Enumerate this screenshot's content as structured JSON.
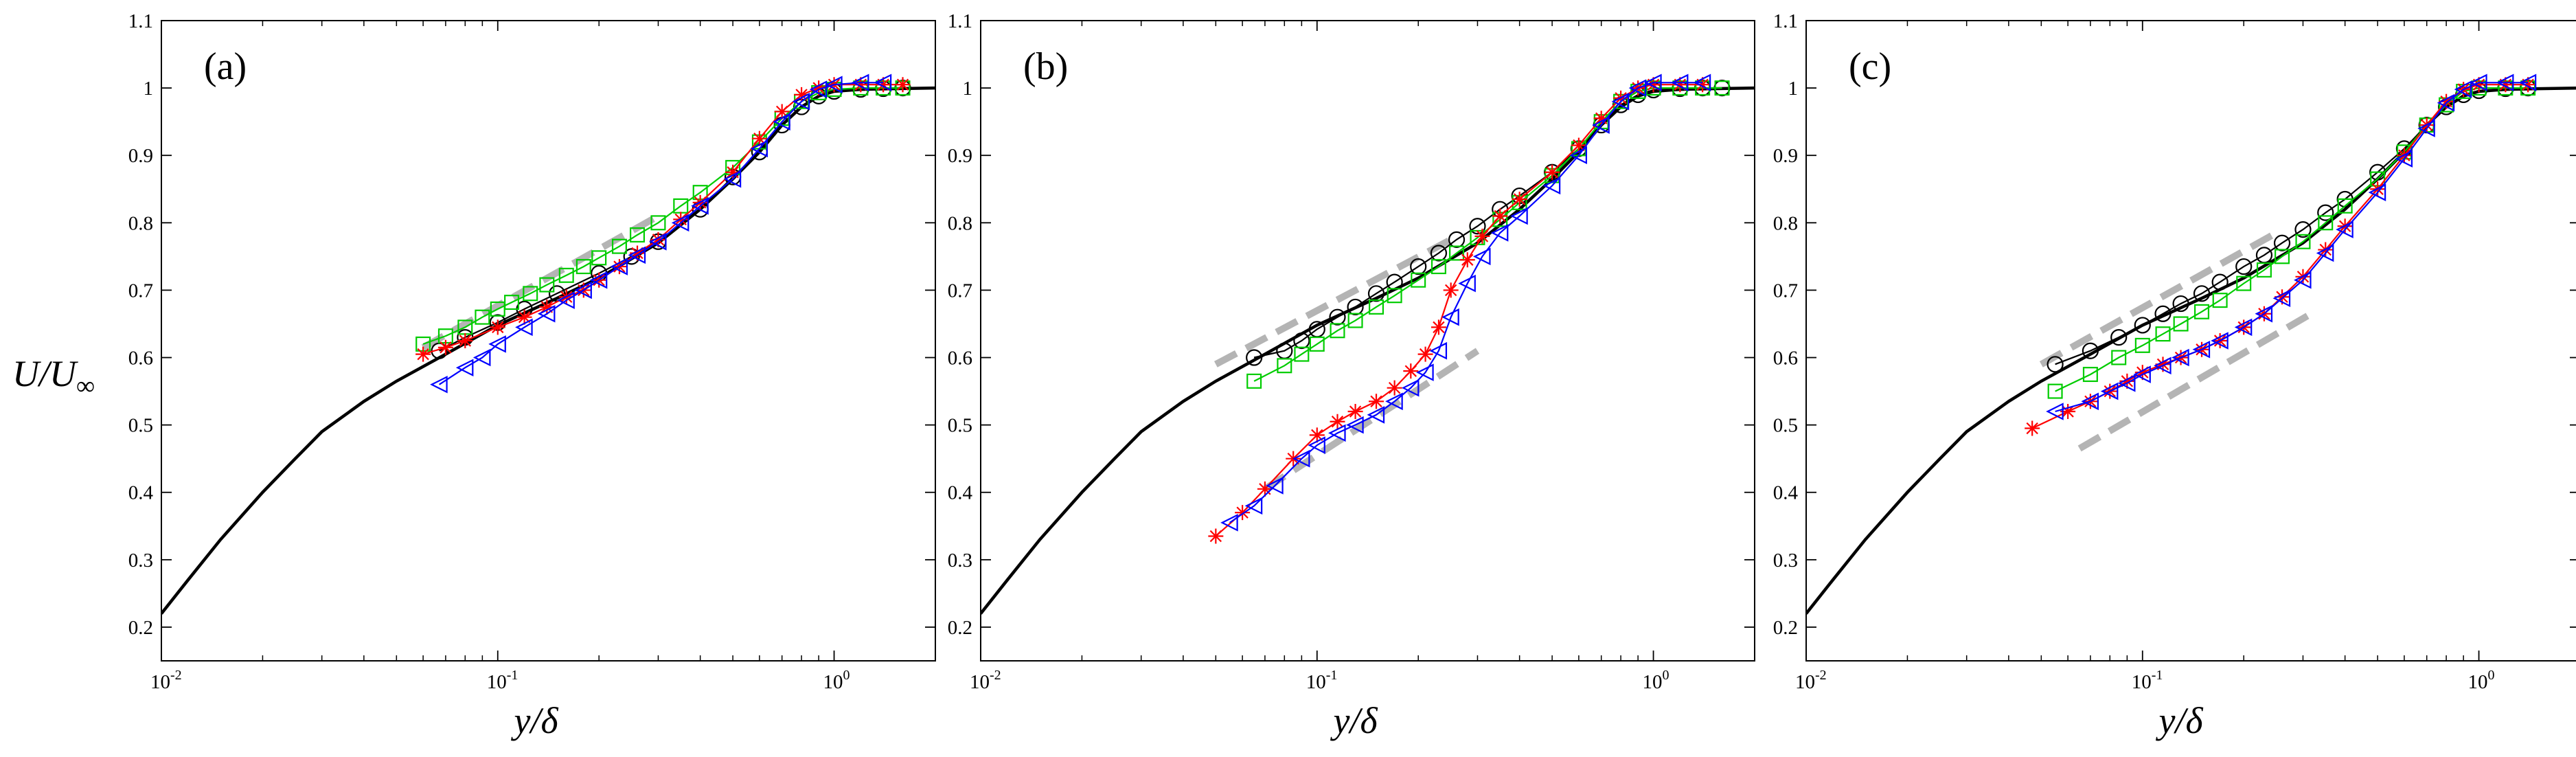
{
  "figure": {
    "ylabel_main": "U/U",
    "ylabel_sub": "∞",
    "colors": {
      "black": "#000000",
      "red": "#ff0000",
      "green": "#00cc00",
      "blue": "#0000ff",
      "guide": "#b4b4b4"
    }
  },
  "chart_data": [
    {
      "type": "line",
      "panel_label": "(a)",
      "xscale": "log",
      "xlim": [
        0.01,
        2
      ],
      "ylim": [
        0.15,
        1.1
      ],
      "xlabel_main": "y/",
      "xlabel_greek": "δ",
      "xticks": [
        {
          "base": "10",
          "exp": "-2",
          "value": 0.01
        },
        {
          "base": "10",
          "exp": "-1",
          "value": 0.1
        },
        {
          "base": "10",
          "exp": "0",
          "value": 1
        }
      ],
      "yticks": [
        "0.2",
        "0.3",
        "0.4",
        "0.5",
        "0.6",
        "0.7",
        "0.8",
        "0.9",
        "1",
        "1.1"
      ],
      "reference": {
        "name": "reference profile",
        "x": [
          0.01,
          0.012,
          0.015,
          0.02,
          0.025,
          0.03,
          0.04,
          0.05,
          0.07,
          0.1,
          0.15,
          0.2,
          0.3,
          0.4,
          0.5,
          0.6,
          0.7,
          0.8,
          0.9,
          1.0,
          1.2,
          1.5,
          2.0
        ],
        "y": [
          0.22,
          0.27,
          0.33,
          0.4,
          0.45,
          0.49,
          0.535,
          0.565,
          0.605,
          0.648,
          0.688,
          0.718,
          0.77,
          0.82,
          0.865,
          0.905,
          0.945,
          0.972,
          0.988,
          0.995,
          0.998,
          0.999,
          1.0
        ]
      },
      "guides": [
        {
          "x": [
            0.06,
            0.3
          ],
          "y": [
            0.615,
            0.81
          ]
        }
      ],
      "series": [
        {
          "name": "black circles",
          "color": "#000000",
          "marker": "circle",
          "x": [
            0.067,
            0.08,
            0.1,
            0.12,
            0.15,
            0.2,
            0.25,
            0.3,
            0.4,
            0.5,
            0.6,
            0.7,
            0.8,
            0.9,
            1.0,
            1.2,
            1.4,
            1.6
          ],
          "y": [
            0.61,
            0.63,
            0.652,
            0.672,
            0.695,
            0.725,
            0.75,
            0.772,
            0.82,
            0.868,
            0.905,
            0.945,
            0.972,
            0.988,
            0.995,
            0.998,
            0.999,
            1.0
          ]
        },
        {
          "name": "green squares",
          "color": "#00cc00",
          "marker": "square",
          "x": [
            0.06,
            0.07,
            0.08,
            0.09,
            0.1,
            0.11,
            0.125,
            0.14,
            0.16,
            0.18,
            0.2,
            0.23,
            0.26,
            0.3,
            0.35,
            0.4,
            0.5,
            0.6,
            0.7,
            0.8,
            0.9,
            1.0,
            1.2,
            1.4,
            1.6
          ],
          "y": [
            0.62,
            0.632,
            0.645,
            0.66,
            0.672,
            0.682,
            0.695,
            0.708,
            0.722,
            0.735,
            0.748,
            0.765,
            0.782,
            0.8,
            0.825,
            0.845,
            0.882,
            0.92,
            0.955,
            0.98,
            0.993,
            0.998,
            1.0,
            1.0,
            1.0
          ]
        },
        {
          "name": "red stars",
          "color": "#ff0000",
          "marker": "star",
          "x": [
            0.06,
            0.07,
            0.08,
            0.1,
            0.12,
            0.14,
            0.16,
            0.18,
            0.2,
            0.23,
            0.26,
            0.3,
            0.35,
            0.4,
            0.5,
            0.6,
            0.7,
            0.8,
            0.9,
            1.0,
            1.2,
            1.4,
            1.6
          ],
          "y": [
            0.605,
            0.615,
            0.625,
            0.645,
            0.66,
            0.675,
            0.69,
            0.7,
            0.715,
            0.735,
            0.755,
            0.775,
            0.805,
            0.83,
            0.875,
            0.925,
            0.965,
            0.99,
            1.0,
            1.005,
            1.005,
            1.005,
            1.005
          ]
        },
        {
          "name": "blue triangles",
          "color": "#0000ff",
          "marker": "triangle",
          "x": [
            0.067,
            0.08,
            0.09,
            0.1,
            0.12,
            0.14,
            0.16,
            0.18,
            0.2,
            0.23,
            0.26,
            0.3,
            0.35,
            0.4,
            0.5,
            0.6,
            0.7,
            0.8,
            0.9,
            1.0,
            1.2,
            1.4
          ],
          "y": [
            0.56,
            0.585,
            0.6,
            0.62,
            0.645,
            0.665,
            0.685,
            0.7,
            0.715,
            0.735,
            0.752,
            0.772,
            0.8,
            0.825,
            0.865,
            0.91,
            0.95,
            0.98,
            0.998,
            1.005,
            1.008,
            1.008
          ]
        }
      ]
    },
    {
      "type": "line",
      "panel_label": "(b)",
      "xscale": "log",
      "xlim": [
        0.01,
        2
      ],
      "ylim": [
        0.15,
        1.1
      ],
      "xlabel_main": "y/",
      "xlabel_greek": "δ",
      "xticks": [
        {
          "base": "10",
          "exp": "-2",
          "value": 0.01
        },
        {
          "base": "10",
          "exp": "-1",
          "value": 0.1
        },
        {
          "base": "10",
          "exp": "0",
          "value": 1
        }
      ],
      "yticks": [
        "0.2",
        "0.3",
        "0.4",
        "0.5",
        "0.6",
        "0.7",
        "0.8",
        "0.9",
        "1",
        "1.1"
      ],
      "reference": {
        "name": "reference profile",
        "x": [
          0.01,
          0.012,
          0.015,
          0.02,
          0.025,
          0.03,
          0.04,
          0.05,
          0.07,
          0.1,
          0.15,
          0.2,
          0.3,
          0.4,
          0.5,
          0.6,
          0.7,
          0.8,
          0.9,
          1.0,
          1.2,
          1.5,
          2.0
        ],
        "y": [
          0.22,
          0.27,
          0.33,
          0.4,
          0.45,
          0.49,
          0.535,
          0.565,
          0.605,
          0.648,
          0.688,
          0.718,
          0.77,
          0.82,
          0.865,
          0.905,
          0.945,
          0.972,
          0.988,
          0.995,
          0.998,
          0.999,
          1.0
        ]
      },
      "guides": [
        {
          "x": [
            0.05,
            0.25
          ],
          "y": [
            0.59,
            0.775
          ]
        },
        {
          "x": [
            0.07,
            0.3
          ],
          "y": [
            0.405,
            0.61
          ]
        }
      ],
      "series": [
        {
          "name": "black circles",
          "color": "#000000",
          "marker": "circle",
          "x": [
            0.065,
            0.08,
            0.09,
            0.1,
            0.115,
            0.13,
            0.15,
            0.17,
            0.2,
            0.23,
            0.26,
            0.3,
            0.35,
            0.4,
            0.5,
            0.6,
            0.7,
            0.8,
            0.9,
            1.0,
            1.2,
            1.4,
            1.6
          ],
          "y": [
            0.6,
            0.61,
            0.625,
            0.642,
            0.66,
            0.675,
            0.695,
            0.712,
            0.735,
            0.755,
            0.775,
            0.795,
            0.82,
            0.84,
            0.875,
            0.91,
            0.945,
            0.975,
            0.99,
            0.997,
            0.999,
            1.0,
            1.0
          ]
        },
        {
          "name": "green squares",
          "color": "#00cc00",
          "marker": "square",
          "x": [
            0.065,
            0.08,
            0.09,
            0.1,
            0.115,
            0.13,
            0.15,
            0.17,
            0.2,
            0.23,
            0.26,
            0.3,
            0.35,
            0.4,
            0.5,
            0.6,
            0.7,
            0.8,
            0.9,
            1.0,
            1.2,
            1.4,
            1.6
          ],
          "y": [
            0.565,
            0.588,
            0.605,
            0.62,
            0.64,
            0.655,
            0.675,
            0.692,
            0.715,
            0.735,
            0.755,
            0.778,
            0.805,
            0.83,
            0.87,
            0.91,
            0.95,
            0.98,
            0.995,
            1.0,
            1.0,
            1.0,
            1.0
          ]
        },
        {
          "name": "red stars",
          "color": "#ff0000",
          "marker": "star",
          "x": [
            0.05,
            0.06,
            0.07,
            0.085,
            0.1,
            0.115,
            0.13,
            0.15,
            0.17,
            0.19,
            0.21,
            0.23,
            0.25,
            0.28,
            0.31,
            0.35,
            0.4,
            0.5,
            0.6,
            0.7,
            0.8,
            0.9,
            1.0,
            1.2,
            1.4
          ],
          "y": [
            0.335,
            0.37,
            0.405,
            0.45,
            0.485,
            0.505,
            0.52,
            0.535,
            0.555,
            0.58,
            0.605,
            0.645,
            0.7,
            0.745,
            0.78,
            0.81,
            0.835,
            0.875,
            0.915,
            0.955,
            0.985,
            1.0,
            1.005,
            1.005,
            1.005
          ]
        },
        {
          "name": "blue triangles",
          "color": "#0000ff",
          "marker": "triangle",
          "x": [
            0.055,
            0.065,
            0.075,
            0.09,
            0.1,
            0.115,
            0.13,
            0.15,
            0.17,
            0.19,
            0.21,
            0.23,
            0.25,
            0.28,
            0.31,
            0.35,
            0.4,
            0.5,
            0.6,
            0.7,
            0.8,
            0.9,
            1.0,
            1.2,
            1.4
          ],
          "y": [
            0.355,
            0.38,
            0.41,
            0.45,
            0.47,
            0.488,
            0.5,
            0.515,
            0.535,
            0.555,
            0.578,
            0.61,
            0.66,
            0.71,
            0.75,
            0.785,
            0.81,
            0.855,
            0.9,
            0.945,
            0.98,
            1.0,
            1.008,
            1.008,
            1.008
          ]
        }
      ]
    },
    {
      "type": "line",
      "panel_label": "(c)",
      "xscale": "log",
      "xlim": [
        0.01,
        2
      ],
      "ylim": [
        0.15,
        1.1
      ],
      "xlabel_main": "y/",
      "xlabel_greek": "δ",
      "xticks": [
        {
          "base": "10",
          "exp": "-2",
          "value": 0.01
        },
        {
          "base": "10",
          "exp": "-1",
          "value": 0.1
        },
        {
          "base": "10",
          "exp": "0",
          "value": 1
        }
      ],
      "yticks": [
        "0.2",
        "0.3",
        "0.4",
        "0.5",
        "0.6",
        "0.7",
        "0.8",
        "0.9",
        "1",
        "1.1"
      ],
      "reference": {
        "name": "reference profile",
        "x": [
          0.01,
          0.012,
          0.015,
          0.02,
          0.025,
          0.03,
          0.04,
          0.05,
          0.07,
          0.1,
          0.15,
          0.2,
          0.3,
          0.4,
          0.5,
          0.6,
          0.7,
          0.8,
          0.9,
          1.0,
          1.2,
          1.5,
          2.0
        ],
        "y": [
          0.22,
          0.27,
          0.33,
          0.4,
          0.45,
          0.49,
          0.535,
          0.565,
          0.605,
          0.648,
          0.688,
          0.718,
          0.77,
          0.82,
          0.865,
          0.905,
          0.945,
          0.972,
          0.988,
          0.995,
          0.998,
          0.999,
          1.0
        ]
      },
      "guides": [
        {
          "x": [
            0.05,
            0.25
          ],
          "y": [
            0.59,
            0.785
          ]
        },
        {
          "x": [
            0.065,
            0.33
          ],
          "y": [
            0.465,
            0.67
          ]
        }
      ],
      "series": [
        {
          "name": "black circles",
          "color": "#000000",
          "marker": "circle",
          "x": [
            0.055,
            0.07,
            0.085,
            0.1,
            0.115,
            0.13,
            0.15,
            0.17,
            0.2,
            0.23,
            0.26,
            0.3,
            0.35,
            0.4,
            0.5,
            0.6,
            0.7,
            0.8,
            0.9,
            1.0,
            1.2,
            1.4
          ],
          "y": [
            0.59,
            0.61,
            0.63,
            0.648,
            0.665,
            0.68,
            0.695,
            0.712,
            0.735,
            0.752,
            0.77,
            0.79,
            0.815,
            0.835,
            0.875,
            0.91,
            0.945,
            0.972,
            0.99,
            0.996,
            0.999,
            1.0
          ]
        },
        {
          "name": "green squares",
          "color": "#00cc00",
          "marker": "square",
          "x": [
            0.055,
            0.07,
            0.085,
            0.1,
            0.115,
            0.13,
            0.15,
            0.17,
            0.2,
            0.23,
            0.26,
            0.3,
            0.35,
            0.4,
            0.5,
            0.6,
            0.7,
            0.8,
            0.9,
            1.0,
            1.2,
            1.4
          ],
          "y": [
            0.55,
            0.575,
            0.6,
            0.618,
            0.635,
            0.65,
            0.668,
            0.685,
            0.71,
            0.73,
            0.75,
            0.772,
            0.8,
            0.825,
            0.865,
            0.905,
            0.945,
            0.975,
            0.995,
            1.0,
            1.0,
            1.0
          ]
        },
        {
          "name": "red stars",
          "color": "#ff0000",
          "marker": "star",
          "x": [
            0.047,
            0.06,
            0.07,
            0.08,
            0.09,
            0.1,
            0.115,
            0.13,
            0.15,
            0.17,
            0.2,
            0.23,
            0.26,
            0.3,
            0.35,
            0.4,
            0.5,
            0.6,
            0.7,
            0.8,
            0.9,
            1.0,
            1.2,
            1.4
          ],
          "y": [
            0.495,
            0.52,
            0.535,
            0.55,
            0.565,
            0.578,
            0.59,
            0.6,
            0.612,
            0.625,
            0.645,
            0.665,
            0.69,
            0.72,
            0.76,
            0.795,
            0.85,
            0.9,
            0.945,
            0.98,
            0.998,
            1.005,
            1.005,
            1.005
          ]
        },
        {
          "name": "blue triangles",
          "color": "#0000ff",
          "marker": "triangle",
          "x": [
            0.055,
            0.07,
            0.08,
            0.09,
            0.1,
            0.115,
            0.13,
            0.15,
            0.17,
            0.2,
            0.23,
            0.26,
            0.3,
            0.35,
            0.4,
            0.5,
            0.6,
            0.7,
            0.8,
            0.9,
            1.0,
            1.2,
            1.4
          ],
          "y": [
            0.52,
            0.535,
            0.55,
            0.562,
            0.575,
            0.588,
            0.6,
            0.612,
            0.625,
            0.645,
            0.665,
            0.688,
            0.715,
            0.755,
            0.79,
            0.845,
            0.895,
            0.94,
            0.978,
            0.998,
            1.008,
            1.008,
            1.008
          ]
        }
      ]
    }
  ]
}
